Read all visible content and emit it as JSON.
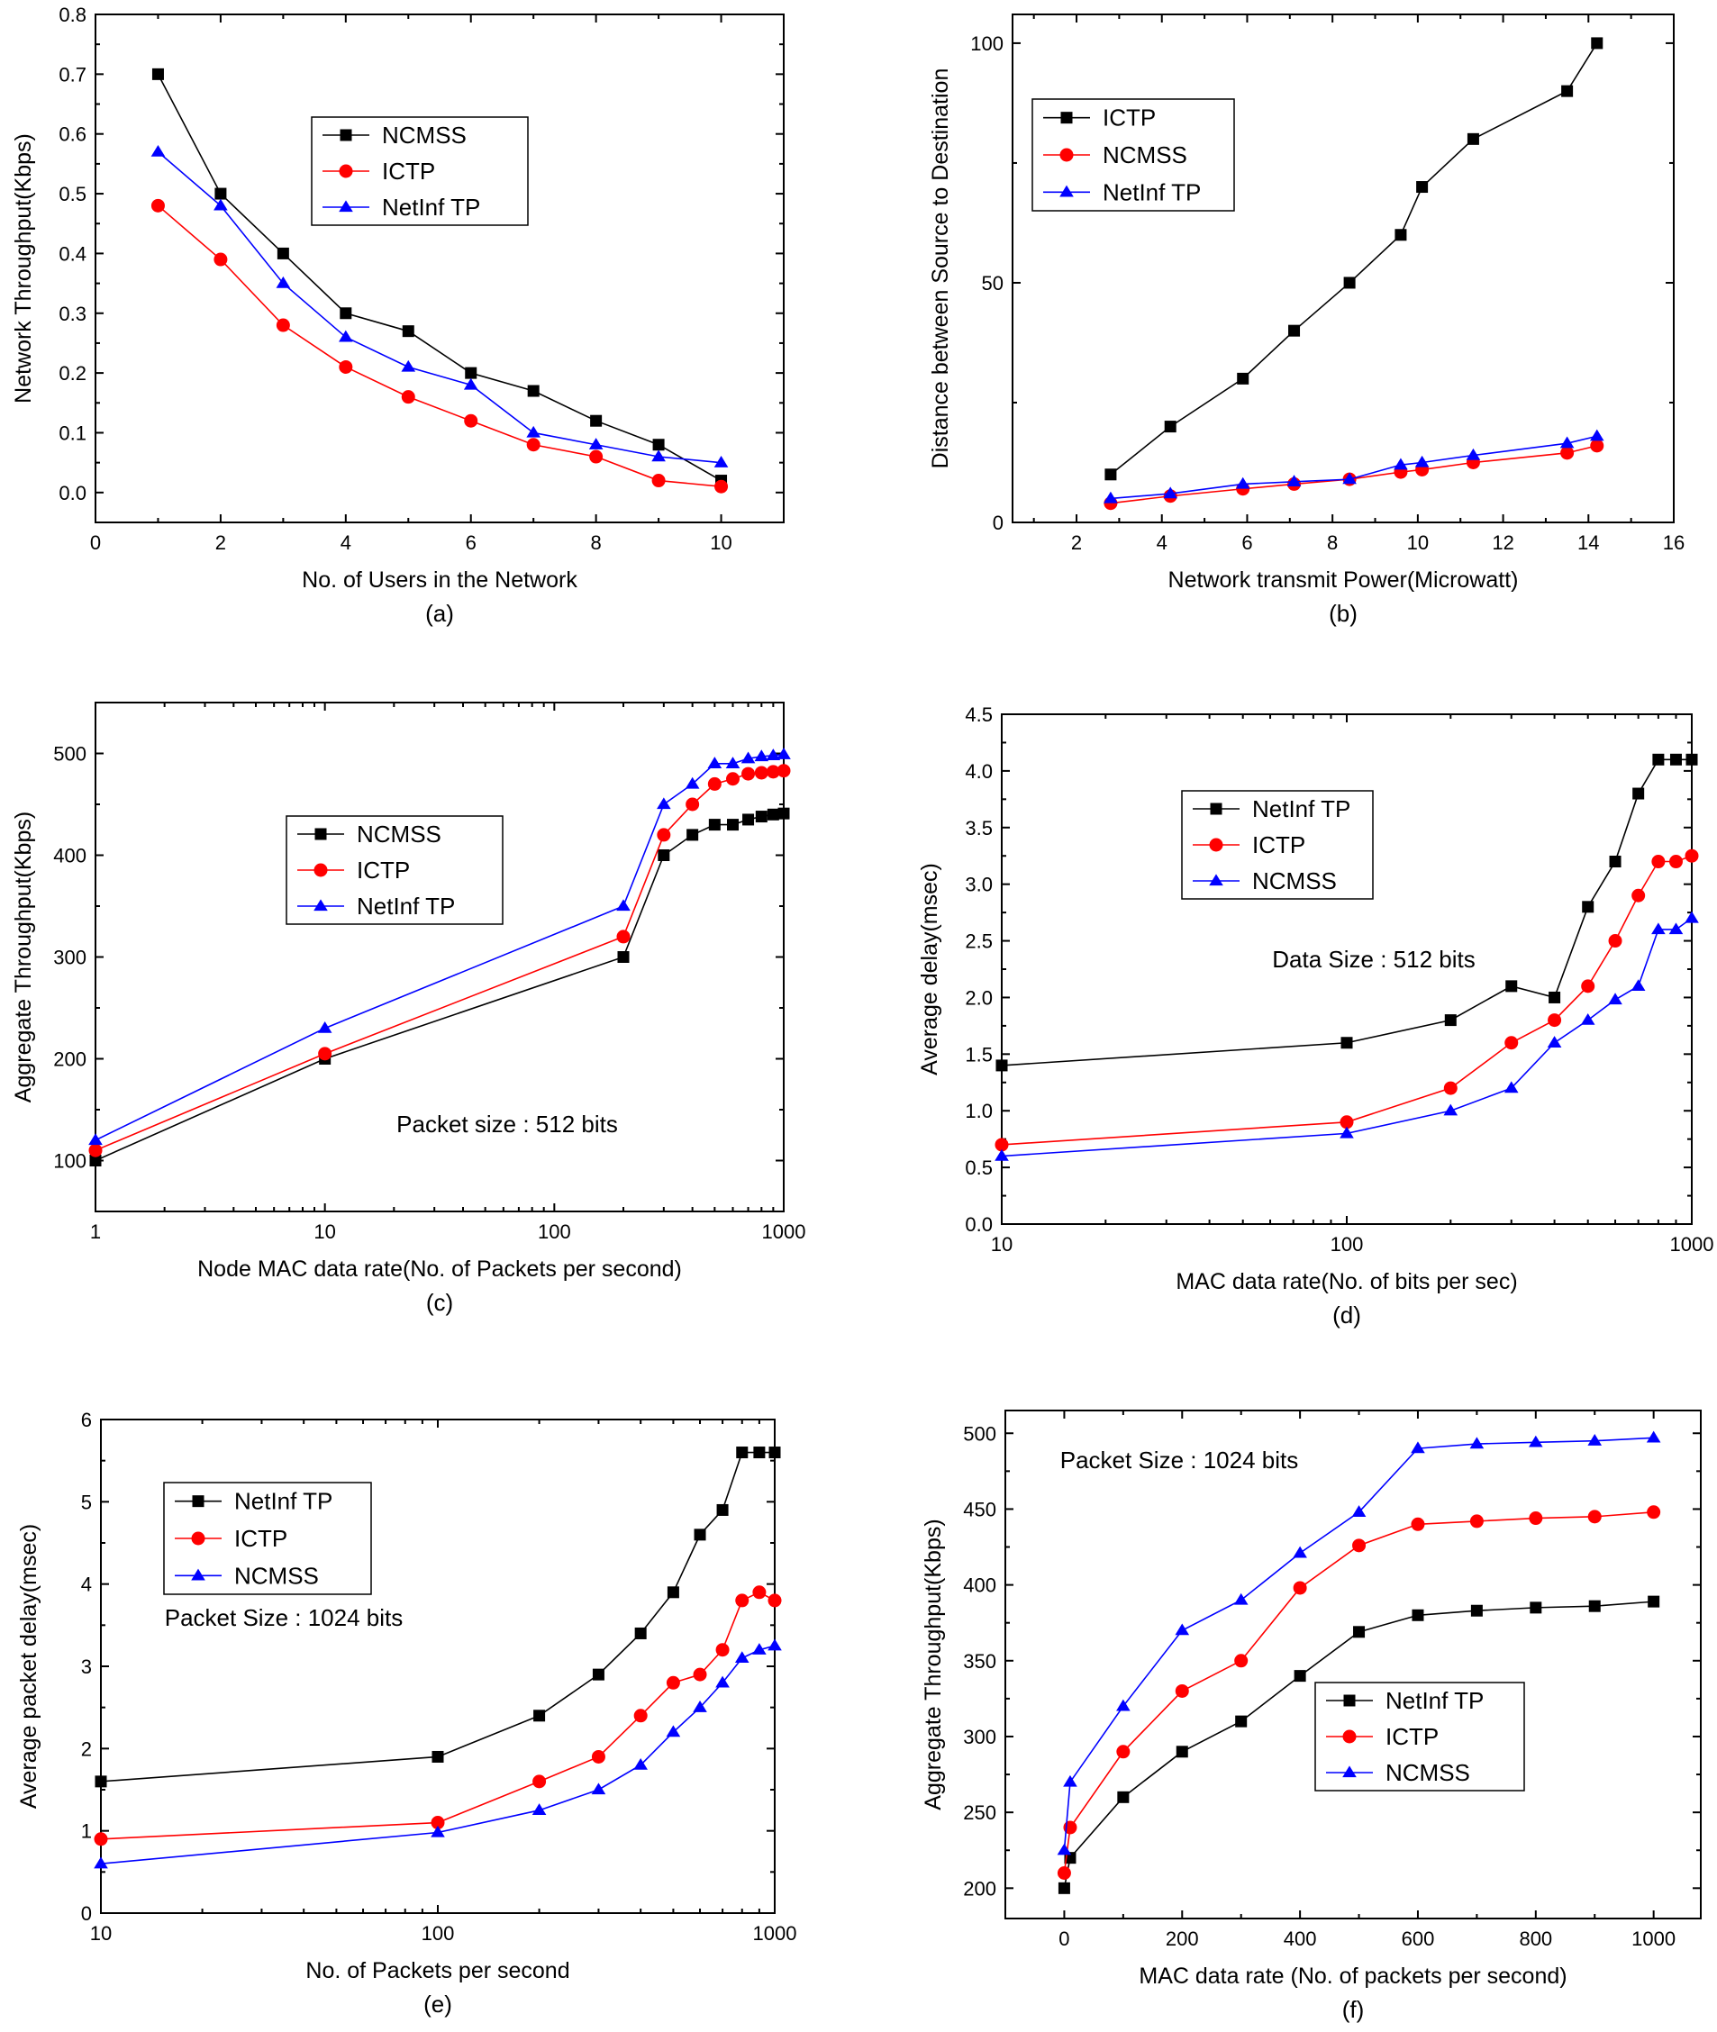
{
  "colors": {
    "black": "#000000",
    "red": "#ff0000",
    "blue": "#0000ff"
  },
  "chart_data": [
    {
      "id": "a",
      "type": "line",
      "caption": "(a)",
      "xlabel": "No. of Users in the Network",
      "ylabel": "Network Throughput(Kbps)",
      "xscale": "linear",
      "xlim": [
        0,
        11
      ],
      "ylim": [
        -0.05,
        0.8
      ],
      "xticks": [
        0,
        2,
        4,
        6,
        8,
        10
      ],
      "xtick_labels": [
        "0",
        "2",
        "4",
        "6",
        "8",
        "10"
      ],
      "yticks": [
        0,
        0.1,
        0.2,
        0.3,
        0.4,
        0.5,
        0.6,
        0.7,
        0.8
      ],
      "ytick_labels": [
        "0.0",
        "0.1",
        "0.2",
        "0.3",
        "0.4",
        "0.5",
        "0.6",
        "0.7",
        "0.8"
      ],
      "legend_position": "upper-middle",
      "annotation": "",
      "series": [
        {
          "name": "NCMSS",
          "color": "#000000",
          "marker": "square",
          "x": [
            1,
            2,
            3,
            4,
            5,
            6,
            7,
            8,
            9,
            10
          ],
          "y": [
            0.7,
            0.5,
            0.4,
            0.3,
            0.27,
            0.2,
            0.17,
            0.12,
            0.08,
            0.02
          ]
        },
        {
          "name": "ICTP",
          "color": "#ff0000",
          "marker": "circle",
          "x": [
            1,
            2,
            3,
            4,
            5,
            6,
            7,
            8,
            9,
            10
          ],
          "y": [
            0.48,
            0.39,
            0.28,
            0.21,
            0.16,
            0.12,
            0.08,
            0.06,
            0.02,
            0.01
          ]
        },
        {
          "name": "NetInf TP",
          "color": "#0000ff",
          "marker": "triangle",
          "x": [
            1,
            2,
            3,
            4,
            5,
            6,
            7,
            8,
            9,
            10
          ],
          "y": [
            0.57,
            0.48,
            0.35,
            0.26,
            0.21,
            0.18,
            0.1,
            0.08,
            0.06,
            0.05
          ]
        }
      ]
    },
    {
      "id": "b",
      "type": "line",
      "caption": "(b)",
      "xlabel": "Network transmit Power(Microwatt)",
      "ylabel": "Distance between Source to Destination",
      "xscale": "linear",
      "xlim": [
        0.5,
        16
      ],
      "ylim": [
        0,
        106
      ],
      "xticks": [
        2,
        4,
        6,
        8,
        10,
        12,
        14,
        16
      ],
      "xtick_labels": [
        "2",
        "4",
        "6",
        "8",
        "10",
        "12",
        "14",
        "16"
      ],
      "yticks": [
        0,
        50,
        100
      ],
      "ytick_labels": [
        "0",
        "50",
        "100"
      ],
      "legend_position": "upper-left",
      "annotation": "",
      "series": [
        {
          "name": "ICTP",
          "color": "#000000",
          "marker": "square",
          "x": [
            2.8,
            4.2,
            5.9,
            7.1,
            8.4,
            9.6,
            10.1,
            11.3,
            13.5,
            14.2
          ],
          "y": [
            10,
            20,
            30,
            40,
            50,
            60,
            70,
            80,
            90,
            100
          ]
        },
        {
          "name": "NCMSS",
          "color": "#ff0000",
          "marker": "circle",
          "x": [
            2.8,
            4.2,
            5.9,
            7.1,
            8.4,
            9.6,
            10.1,
            11.3,
            13.5,
            14.2
          ],
          "y": [
            4,
            5.5,
            7,
            8,
            9,
            10.5,
            11,
            12.5,
            14.5,
            16
          ]
        },
        {
          "name": "NetInf TP",
          "color": "#0000ff",
          "marker": "triangle",
          "x": [
            2.8,
            4.2,
            5.9,
            7.1,
            8.4,
            9.6,
            10.1,
            11.3,
            13.5,
            14.2
          ],
          "y": [
            5,
            6,
            8,
            8.5,
            9,
            12,
            12.5,
            14,
            16.5,
            18
          ]
        }
      ]
    },
    {
      "id": "c",
      "type": "line",
      "caption": "(c)",
      "xlabel": "Node MAC data rate(No. of Packets per second)",
      "ylabel": "Aggregate Throughput(Kbps)",
      "xscale": "log",
      "xlim": [
        1,
        1000
      ],
      "ylim": [
        50,
        550
      ],
      "xticks": [
        1,
        10,
        100,
        1000
      ],
      "xtick_labels": [
        "1",
        "10",
        "100",
        "1000"
      ],
      "yticks": [
        100,
        200,
        300,
        400,
        500
      ],
      "ytick_labels": [
        "100",
        "200",
        "300",
        "400",
        "500"
      ],
      "legend_position": "middle-left",
      "annotation": "Packet size : 512 bits",
      "series": [
        {
          "name": "NCMSS",
          "color": "#000000",
          "marker": "square",
          "x": [
            1,
            10,
            200,
            300,
            400,
            500,
            600,
            700,
            800,
            900,
            1000
          ],
          "y": [
            100,
            200,
            300,
            400,
            420,
            430,
            430,
            435,
            438,
            440,
            441
          ]
        },
        {
          "name": "ICTP",
          "color": "#ff0000",
          "marker": "circle",
          "x": [
            1,
            10,
            200,
            300,
            400,
            500,
            600,
            700,
            800,
            900,
            1000
          ],
          "y": [
            110,
            205,
            320,
            420,
            450,
            470,
            475,
            480,
            481,
            482,
            483
          ]
        },
        {
          "name": "NetInf TP",
          "color": "#0000ff",
          "marker": "triangle",
          "x": [
            1,
            10,
            200,
            300,
            400,
            500,
            600,
            700,
            800,
            900,
            1000
          ],
          "y": [
            120,
            230,
            350,
            450,
            470,
            490,
            490,
            495,
            497,
            498,
            499
          ]
        }
      ]
    },
    {
      "id": "d",
      "type": "line",
      "caption": "(d)",
      "xlabel": "MAC data rate(No. of bits per sec)",
      "ylabel": "Average delay(msec)",
      "xscale": "log",
      "xlim": [
        10,
        1000
      ],
      "ylim": [
        0,
        4.5
      ],
      "xticks": [
        10,
        100,
        1000
      ],
      "xtick_labels": [
        "10",
        "100",
        "1000"
      ],
      "yticks": [
        0,
        0.5,
        1,
        1.5,
        2,
        2.5,
        3,
        3.5,
        4,
        4.5
      ],
      "ytick_labels": [
        "0.0",
        "0.5",
        "1.0",
        "1.5",
        "2.0",
        "2.5",
        "3.0",
        "3.5",
        "4.0",
        "4.5"
      ],
      "legend_position": "upper-middle",
      "annotation": "Data Size : 512 bits",
      "series": [
        {
          "name": "NetInf TP",
          "color": "#000000",
          "marker": "square",
          "x": [
            10,
            100,
            200,
            300,
            400,
            500,
            600,
            700,
            800,
            900,
            1000
          ],
          "y": [
            1.4,
            1.6,
            1.8,
            2.1,
            2.0,
            2.8,
            3.2,
            3.8,
            4.1,
            4.1,
            4.1
          ]
        },
        {
          "name": "ICTP",
          "color": "#ff0000",
          "marker": "circle",
          "x": [
            10,
            100,
            200,
            300,
            400,
            500,
            600,
            700,
            800,
            900,
            1000
          ],
          "y": [
            0.7,
            0.9,
            1.2,
            1.6,
            1.8,
            2.1,
            2.5,
            2.9,
            3.2,
            3.2,
            3.25
          ]
        },
        {
          "name": "NCMSS",
          "color": "#0000ff",
          "marker": "triangle",
          "x": [
            10,
            100,
            200,
            300,
            400,
            500,
            600,
            700,
            800,
            900,
            1000
          ],
          "y": [
            0.6,
            0.8,
            1.0,
            1.2,
            1.6,
            1.8,
            1.98,
            2.1,
            2.6,
            2.6,
            2.7
          ]
        }
      ]
    },
    {
      "id": "e",
      "type": "line",
      "caption": "(e)",
      "xlabel": "No. of Packets per second",
      "ylabel": "Average packet delay(msec)",
      "xscale": "log",
      "xlim": [
        10,
        1000
      ],
      "ylim": [
        0,
        6
      ],
      "xticks": [
        10,
        100,
        1000
      ],
      "xtick_labels": [
        "10",
        "100",
        "1000"
      ],
      "yticks": [
        0,
        1,
        2,
        3,
        4,
        5,
        6
      ],
      "ytick_labels": [
        "0",
        "1",
        "2",
        "3",
        "4",
        "5",
        "6"
      ],
      "legend_position": "upper-left",
      "annotation": "Packet Size : 1024 bits",
      "series": [
        {
          "name": "NetInf TP",
          "color": "#000000",
          "marker": "square",
          "x": [
            10,
            100,
            200,
            300,
            400,
            500,
            600,
            700,
            800,
            900,
            1000
          ],
          "y": [
            1.6,
            1.9,
            2.4,
            2.9,
            3.4,
            3.9,
            4.6,
            4.9,
            5.6,
            5.6,
            5.6
          ]
        },
        {
          "name": "ICTP",
          "color": "#ff0000",
          "marker": "circle",
          "x": [
            10,
            100,
            200,
            300,
            400,
            500,
            600,
            700,
            800,
            900,
            1000
          ],
          "y": [
            0.9,
            1.1,
            1.6,
            1.9,
            2.4,
            2.8,
            2.9,
            3.2,
            3.8,
            3.9,
            3.8
          ]
        },
        {
          "name": "NCMSS",
          "color": "#0000ff",
          "marker": "triangle",
          "x": [
            10,
            100,
            200,
            300,
            400,
            500,
            600,
            700,
            800,
            900,
            1000
          ],
          "y": [
            0.6,
            0.98,
            1.25,
            1.5,
            1.8,
            2.2,
            2.5,
            2.8,
            3.1,
            3.2,
            3.25
          ]
        }
      ]
    },
    {
      "id": "f",
      "type": "line",
      "caption": "(f)",
      "xlabel": "MAC data rate (No. of packets per second)",
      "ylabel": "Aggregate Throughput(Kbps)",
      "xscale": "linear",
      "xlim": [
        -100,
        1080
      ],
      "ylim": [
        180,
        515
      ],
      "xticks": [
        0,
        200,
        400,
        600,
        800,
        1000
      ],
      "xtick_labels": [
        "0",
        "200",
        "400",
        "600",
        "800",
        "1000"
      ],
      "yticks": [
        200,
        250,
        300,
        350,
        400,
        450,
        500
      ],
      "ytick_labels": [
        "200",
        "250",
        "300",
        "350",
        "400",
        "450",
        "500"
      ],
      "legend_position": "lower-right",
      "annotation": "Packet Size : 1024 bits",
      "series": [
        {
          "name": "NetInf TP",
          "color": "#000000",
          "marker": "square",
          "x": [
            0,
            10,
            100,
            200,
            300,
            400,
            500,
            600,
            700,
            800,
            900,
            1000
          ],
          "y": [
            200,
            220,
            260,
            290,
            310,
            340,
            369,
            380,
            383,
            385,
            386,
            389
          ]
        },
        {
          "name": "ICTP",
          "color": "#ff0000",
          "marker": "circle",
          "x": [
            0,
            10,
            100,
            200,
            300,
            400,
            500,
            600,
            700,
            800,
            900,
            1000
          ],
          "y": [
            210,
            240,
            290,
            330,
            350,
            398,
            426,
            440,
            442,
            444,
            445,
            448
          ]
        },
        {
          "name": "NCMSS",
          "color": "#0000ff",
          "marker": "triangle",
          "x": [
            0,
            10,
            100,
            200,
            300,
            400,
            500,
            600,
            700,
            800,
            900,
            1000
          ],
          "y": [
            225,
            270,
            320,
            370,
            390,
            421,
            448,
            490,
            493,
            494,
            495,
            497
          ]
        }
      ]
    }
  ]
}
